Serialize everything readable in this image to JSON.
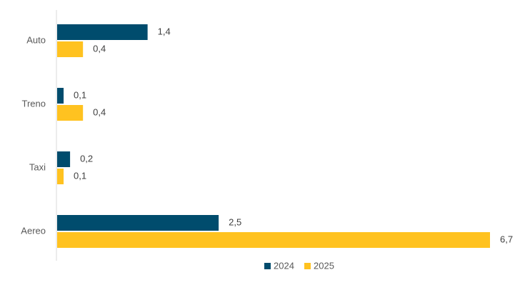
{
  "chart_data": {
    "type": "bar",
    "orientation": "horizontal",
    "categories": [
      "Auto",
      "Treno",
      "Taxi",
      "Aereo"
    ],
    "series": [
      {
        "name": "2024",
        "color": "#004C6D",
        "values": [
          1.4,
          0.1,
          0.2,
          2.5
        ],
        "labels": [
          "1,4",
          "0,1",
          "0,2",
          "2,5"
        ]
      },
      {
        "name": "2025",
        "color": "#FFC220",
        "values": [
          0.4,
          0.4,
          0.1,
          6.7
        ],
        "labels": [
          "0,4",
          "0,4",
          "0,1",
          "6,7"
        ]
      }
    ],
    "title": "",
    "xlabel": "",
    "ylabel": "",
    "xlim": [
      0,
      6.7
    ],
    "grid": false,
    "legend_position": "bottom-center"
  }
}
